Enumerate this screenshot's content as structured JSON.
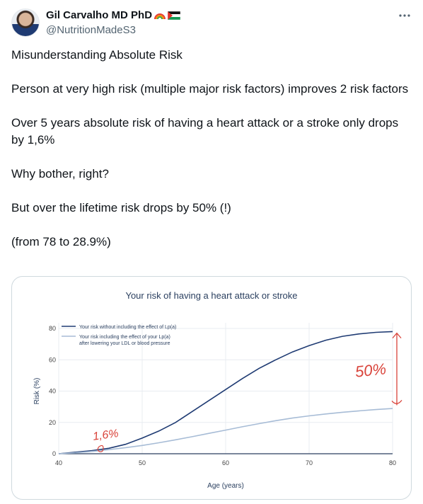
{
  "author": {
    "name": "Gil Carvalho MD PhD",
    "handle": "@NutritionMadeS3",
    "avatar": "avatar-photo",
    "badges": [
      "rainbow-emoji",
      "palestine-flag-emoji"
    ]
  },
  "more_icon": "more-horizontal-icon",
  "tweet": {
    "paragraphs": [
      "Misunderstanding Absolute Risk",
      "Person at very high risk (multiple major risk factors) improves 2 risk factors",
      "Over 5 years absolute risk of having a heart attack or a stroke only drops by 1,6%",
      "Why bother, right?",
      "But over the lifetime risk drops by 50% (!)",
      "(from 78 to 28.9%)"
    ]
  },
  "chart_data": {
    "type": "line",
    "title": "Your risk of having a heart attack or stroke",
    "xlabel": "Age (years)",
    "ylabel": "Risk (%)",
    "xlim": [
      40,
      80
    ],
    "ylim": [
      0,
      80
    ],
    "x_ticks": [
      40,
      50,
      60,
      70,
      80
    ],
    "y_ticks": [
      0,
      20,
      40,
      60,
      80
    ],
    "grid": true,
    "legend_position": "top-left",
    "series": [
      {
        "name": "Your risk without including the effect of Lp(a)",
        "color": "#1f3b73",
        "x": [
          40,
          42,
          44,
          46,
          48,
          50,
          52,
          54,
          56,
          58,
          60,
          62,
          64,
          66,
          68,
          70,
          72,
          74,
          76,
          78,
          80
        ],
        "y": [
          0,
          1,
          2,
          3.5,
          6,
          10,
          14.5,
          20,
          27,
          34,
          41,
          48,
          54.5,
          60,
          65,
          69,
          72.5,
          75,
          76.5,
          77.5,
          78
        ]
      },
      {
        "name": "Your risk including the effect of your Lp(a) after lowering your LDL or blood pressure",
        "color": "#a7bcd6",
        "x": [
          40,
          42,
          44,
          46,
          48,
          50,
          52,
          54,
          56,
          58,
          60,
          62,
          64,
          66,
          68,
          70,
          72,
          74,
          76,
          78,
          80
        ],
        "y": [
          0,
          0.6,
          1.5,
          2.6,
          3.9,
          5.3,
          7,
          8.9,
          10.9,
          13,
          15.1,
          17.2,
          19.2,
          21.1,
          22.8,
          24.2,
          25.4,
          26.5,
          27.4,
          28.2,
          28.9
        ]
      }
    ],
    "annotations": [
      {
        "text": "1,6%",
        "x": 45,
        "y": 12,
        "color": "#d9433a"
      },
      {
        "text": "50%",
        "x": 78,
        "y": 53,
        "color": "#d9433a"
      }
    ]
  }
}
